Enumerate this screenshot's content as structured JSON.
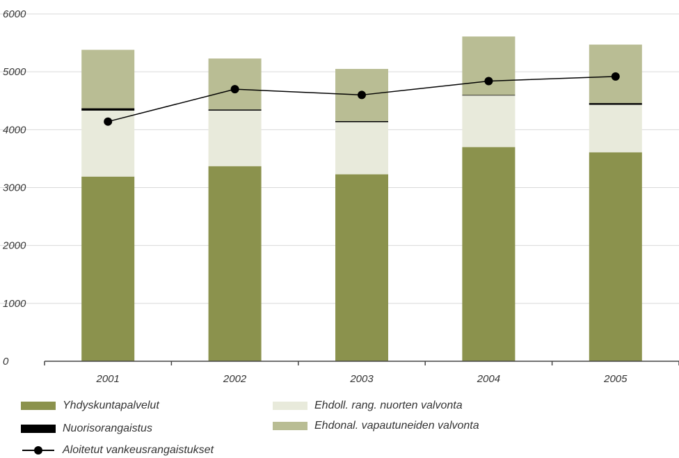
{
  "chart_data": {
    "type": "bar",
    "stacked": true,
    "categories": [
      "2001",
      "2002",
      "2003",
      "2004",
      "2005"
    ],
    "ylim": [
      0,
      6000
    ],
    "yticks": [
      "0",
      "1000",
      "2000",
      "3000",
      "4000",
      "5000",
      "6000"
    ],
    "grid": true,
    "legend_position": "bottom",
    "series": [
      {
        "name": "Yhdyskuntapalvelut",
        "kind": "bar",
        "color": "#8b924d",
        "values": [
          3190,
          3370,
          3230,
          3700,
          3610
        ]
      },
      {
        "name": "Ehdoll. rang. nuorten valvonta",
        "kind": "bar",
        "color": "#e8eadb",
        "values": [
          1140,
          960,
          900,
          890,
          820
        ]
      },
      {
        "name": "Nuorisorangaistus",
        "kind": "bar",
        "color": "#000000",
        "values": [
          40,
          20,
          20,
          10,
          30
        ]
      },
      {
        "name": "Ehdonal. vapautuneiden valvonta",
        "kind": "bar",
        "color": "#b9bd94",
        "values": [
          1010,
          880,
          900,
          1010,
          1010
        ]
      },
      {
        "name": "Aloitetut vankeusrangaistukset",
        "kind": "line",
        "color": "#000000",
        "values": [
          4140,
          4700,
          4600,
          4840,
          4920
        ]
      }
    ]
  },
  "legend": {
    "yhdyskunta": "Yhdyskuntapalvelut",
    "nuoriso": "Nuorisorangaistus",
    "aloitetut": "Aloitetut vankeusrangaistukset",
    "ehdoll": "Ehdoll. rang. nuorten valvonta",
    "ehdonal": "Ehdonal. vapautuneiden valvonta"
  }
}
